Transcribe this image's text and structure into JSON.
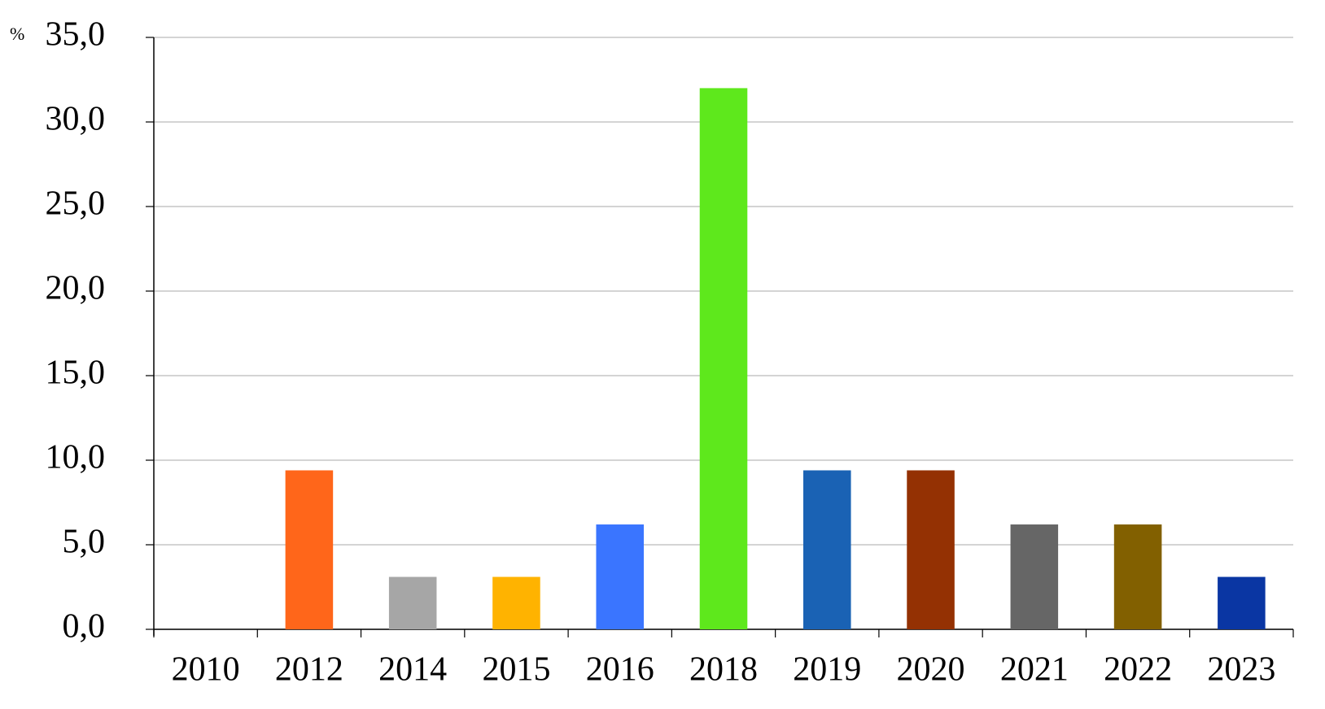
{
  "chart_data": {
    "type": "bar",
    "y_label": "%",
    "categories": [
      "2010",
      "2012",
      "2014",
      "2015",
      "2016",
      "2018",
      "2019",
      "2020",
      "2021",
      "2022",
      "2023"
    ],
    "values": [
      0,
      9.4,
      3.1,
      3.1,
      6.2,
      32.0,
      9.4,
      9.4,
      6.2,
      6.2,
      3.1
    ],
    "colors": [
      "#808080",
      "#ff661a",
      "#a6a6a6",
      "#ffb300",
      "#3a75ff",
      "#5ee81c",
      "#1a62b4",
      "#943103",
      "#666666",
      "#826000",
      "#0a36a3"
    ],
    "ylim": [
      0,
      35
    ],
    "yticks": [
      {
        "value": 0,
        "label": "0,0"
      },
      {
        "value": 5,
        "label": "5,0"
      },
      {
        "value": 10,
        "label": "10,0"
      },
      {
        "value": 15,
        "label": "15,0"
      },
      {
        "value": 20,
        "label": "20,0"
      },
      {
        "value": 25,
        "label": "25,0"
      },
      {
        "value": 30,
        "label": "30,0"
      },
      {
        "value": 35,
        "label": "35,0"
      }
    ],
    "grid": true
  }
}
